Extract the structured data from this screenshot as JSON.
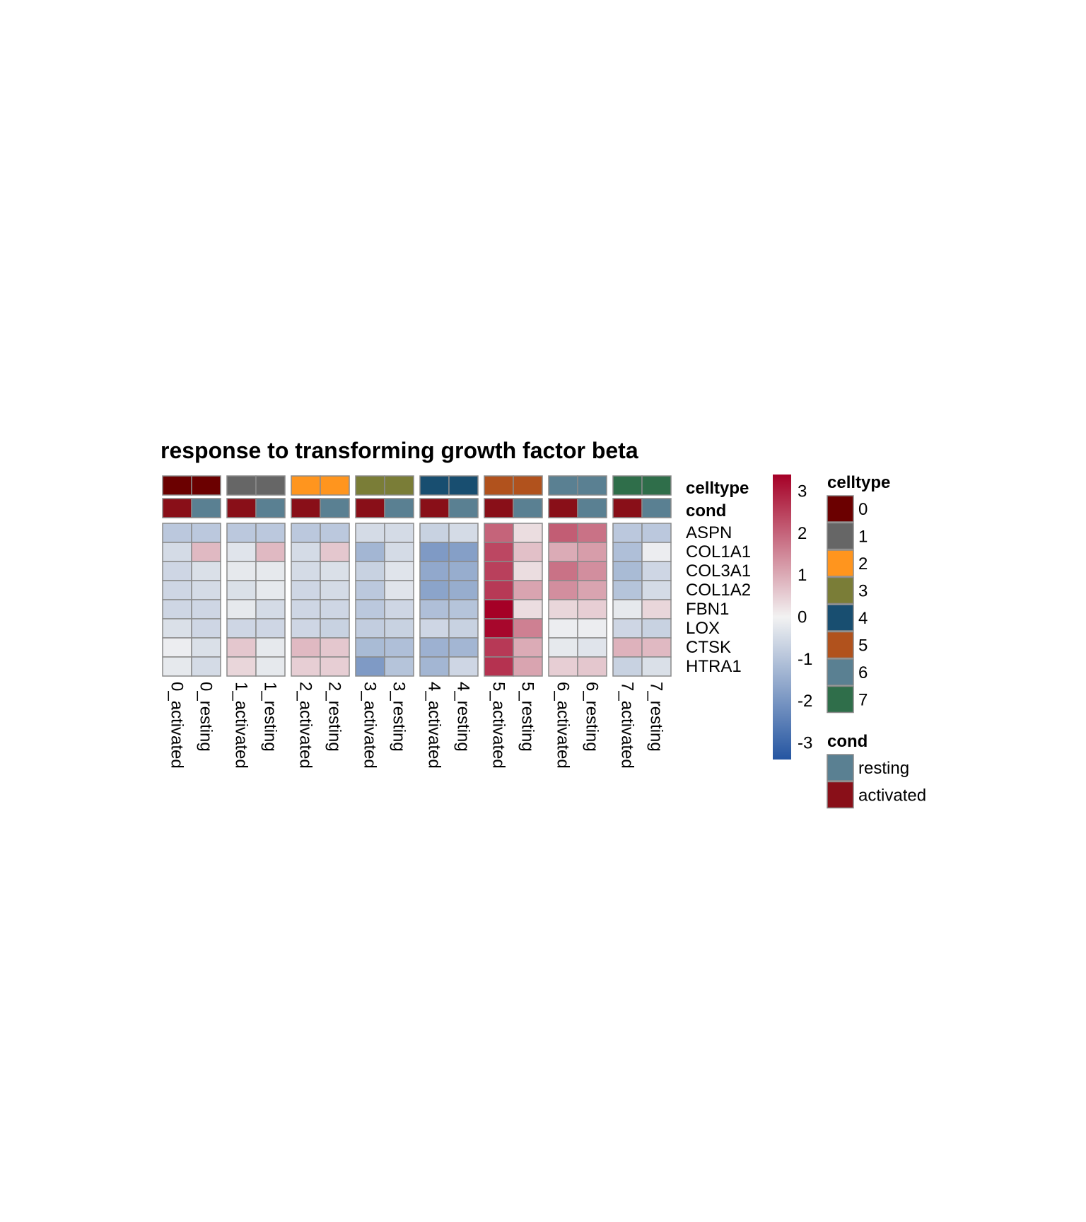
{
  "chart_data": {
    "type": "heatmap",
    "title": "response to transforming growth factor beta",
    "rows": [
      "ASPN",
      "COL1A1",
      "COL3A1",
      "COL1A2",
      "FBN1",
      "LOX",
      "CTSK",
      "HTRA1"
    ],
    "columns": [
      "0_activated",
      "0_resting",
      "1_activated",
      "1_resting",
      "2_activated",
      "2_resting",
      "3_activated",
      "3_resting",
      "4_activated",
      "4_resting",
      "5_activated",
      "5_resting",
      "6_activated",
      "6_resting",
      "7_activated",
      "7_resting"
    ],
    "column_groups": [
      "0",
      "1",
      "2",
      "3",
      "4",
      "5",
      "6",
      "7"
    ],
    "values": [
      [
        -0.9,
        -0.9,
        -0.9,
        -0.9,
        -0.9,
        -0.9,
        -0.5,
        -0.5,
        -0.7,
        -0.5,
        2.0,
        0.3,
        2.1,
        1.8,
        -0.9,
        -0.9
      ],
      [
        -0.5,
        0.8,
        -0.3,
        0.8,
        -0.5,
        0.6,
        -1.3,
        -0.5,
        -1.9,
        -1.8,
        2.4,
        0.7,
        1.0,
        1.2,
        -1.1,
        -0.1
      ],
      [
        -0.6,
        -0.4,
        -0.2,
        -0.2,
        -0.5,
        -0.4,
        -0.7,
        -0.3,
        -1.6,
        -1.5,
        2.5,
        0.3,
        1.8,
        1.4,
        -1.2,
        -0.6
      ],
      [
        -0.6,
        -0.5,
        -0.4,
        -0.2,
        -0.6,
        -0.5,
        -0.9,
        -0.3,
        -1.7,
        -1.5,
        2.6,
        1.1,
        1.4,
        1.1,
        -1.0,
        -0.5
      ],
      [
        -0.6,
        -0.6,
        -0.2,
        -0.5,
        -0.6,
        -0.6,
        -0.9,
        -0.6,
        -1.1,
        -1.0,
        3.4,
        0.3,
        0.4,
        0.5,
        -0.2,
        0.4
      ],
      [
        -0.4,
        -0.6,
        -0.6,
        -0.6,
        -0.6,
        -0.7,
        -0.8,
        -0.7,
        -0.6,
        -0.7,
        3.3,
        1.6,
        -0.1,
        -0.1,
        -0.6,
        -0.7
      ],
      [
        -0.1,
        -0.4,
        0.6,
        -0.2,
        0.8,
        0.6,
        -1.2,
        -1.1,
        -1.4,
        -1.3,
        2.6,
        1.0,
        -0.2,
        -0.3,
        0.9,
        0.8
      ],
      [
        -0.2,
        -0.5,
        0.4,
        -0.2,
        0.5,
        0.5,
        -1.9,
        -1.0,
        -1.3,
        -0.6,
        2.7,
        1.1,
        0.5,
        0.6,
        -0.7,
        -0.4
      ]
    ],
    "annotations": {
      "celltype": [
        "0",
        "0",
        "1",
        "1",
        "2",
        "2",
        "3",
        "3",
        "4",
        "4",
        "5",
        "5",
        "6",
        "6",
        "7",
        "7"
      ],
      "cond": [
        "activated",
        "resting",
        "activated",
        "resting",
        "activated",
        "resting",
        "activated",
        "resting",
        "activated",
        "resting",
        "activated",
        "resting",
        "activated",
        "resting",
        "activated",
        "resting"
      ]
    },
    "annotation_labels": [
      "celltype",
      "cond"
    ],
    "color_scale": {
      "low": "#2455A1",
      "mid": "#F2F2F2",
      "high": "#A50026",
      "range": [
        -3.4,
        3.4
      ],
      "ticks": [
        3,
        2,
        1,
        0,
        -1,
        -2,
        -3
      ],
      "tick_labels": [
        "3",
        "2",
        "1",
        "0",
        "-1",
        "-2",
        "-3"
      ]
    },
    "legend": {
      "celltype": {
        "title": "celltype",
        "items": [
          {
            "label": "0",
            "color": "#6B0000"
          },
          {
            "label": "1",
            "color": "#666666"
          },
          {
            "label": "2",
            "color": "#FF951E"
          },
          {
            "label": "3",
            "color": "#7A7D37"
          },
          {
            "label": "4",
            "color": "#184E70"
          },
          {
            "label": "5",
            "color": "#B1521D"
          },
          {
            "label": "6",
            "color": "#5A8092"
          },
          {
            "label": "7",
            "color": "#2F6E4A"
          }
        ]
      },
      "cond": {
        "title": "cond",
        "items": [
          {
            "label": "resting",
            "color": "#5A8092"
          },
          {
            "label": "activated",
            "color": "#890F18"
          }
        ]
      }
    }
  }
}
